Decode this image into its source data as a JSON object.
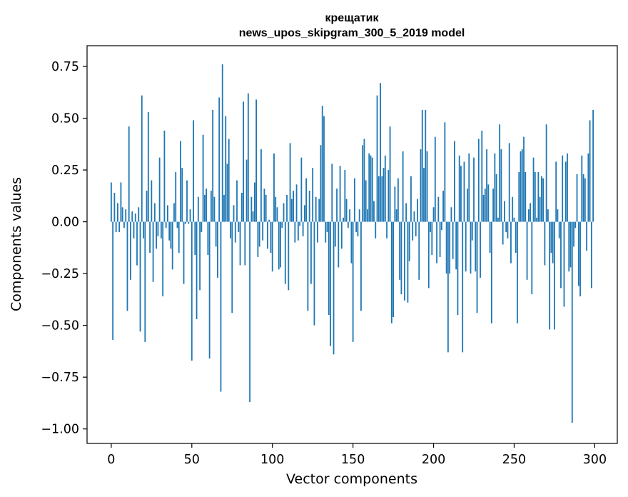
{
  "chart_data": {
    "type": "bar",
    "title": "крещатик",
    "subtitle": "news_upos_skipgram_300_5_2019 model",
    "xlabel": "Vector components",
    "ylabel": "Components values",
    "xlim": [
      -15,
      314
    ],
    "ylim": [
      -1.07,
      0.85
    ],
    "x_ticks": [
      0,
      50,
      100,
      150,
      200,
      250,
      300
    ],
    "x_tick_labels": [
      "0",
      "50",
      "100",
      "150",
      "200",
      "250",
      "300"
    ],
    "y_ticks": [
      0.75,
      0.5,
      0.25,
      0.0,
      -0.25,
      -0.5,
      -0.75,
      -1.0
    ],
    "y_tick_labels": [
      "0.75",
      "0.50",
      "0.25",
      "0.00",
      "−0.25",
      "−0.50",
      "−0.75",
      "−1.00"
    ],
    "bar_color": "#1f77b4",
    "grid": false,
    "x": "0..299",
    "values": [
      0.19,
      -0.57,
      0.14,
      -0.05,
      0.09,
      -0.05,
      0.19,
      0.07,
      -0.03,
      0.06,
      -0.43,
      0.46,
      -0.28,
      0.05,
      -0.08,
      0.04,
      -0.21,
      0.07,
      -0.53,
      0.61,
      -0.08,
      -0.58,
      0.15,
      0.53,
      -0.15,
      0.2,
      -0.29,
      0.09,
      -0.13,
      -0.07,
      0.31,
      -0.08,
      -0.36,
      0.44,
      -0.03,
      0.08,
      -0.09,
      -0.13,
      -0.23,
      0.09,
      0.24,
      -0.03,
      -0.15,
      0.39,
      0.26,
      -0.3,
      -0.01,
      0.2,
      -0.01,
      0.06,
      -0.67,
      0.49,
      -0.16,
      -0.47,
      0.12,
      -0.33,
      -0.05,
      0.42,
      0.13,
      0.16,
      -0.16,
      -0.66,
      0.15,
      0.54,
      0.12,
      -0.12,
      -0.27,
      0.6,
      -0.82,
      0.76,
      0.13,
      0.51,
      0.28,
      0.4,
      -0.08,
      -0.44,
      0.08,
      -0.1,
      0.2,
      -0.05,
      -0.21,
      0.14,
      0.58,
      -0.21,
      0.3,
      0.62,
      -0.87,
      0.12,
      0.05,
      0.19,
      0.59,
      -0.17,
      -0.12,
      0.35,
      -0.09,
      0.16,
      0.13,
      -0.13,
      0.01,
      -0.15,
      -0.24,
      0.33,
      0.12,
      0.07,
      -0.23,
      -0.22,
      -0.03,
      0.09,
      -0.3,
      0.13,
      -0.33,
      0.38,
      0.11,
      0.15,
      -0.1,
      0.18,
      -0.09,
      -0.02,
      0.31,
      -0.07,
      0.08,
      0.21,
      -0.43,
      0.15,
      -0.3,
      0.26,
      -0.5,
      0.12,
      -0.1,
      0.11,
      0.37,
      0.56,
      0.51,
      -0.1,
      -0.05,
      -0.45,
      -0.6,
      0.28,
      -0.64,
      -0.12,
      0.16,
      -0.22,
      0.27,
      -0.13,
      0.02,
      0.25,
      0.11,
      -0.03,
      0.06,
      -0.2,
      -0.58,
      0.21,
      -0.05,
      -0.07,
      0.06,
      -0.43,
      0.37,
      0.4,
      0.2,
      0.06,
      0.33,
      0.32,
      0.31,
      0.1,
      -0.08,
      0.61,
      0.22,
      0.67,
      0.22,
      0.26,
      0.32,
      -0.08,
      0.25,
      0.46,
      -0.49,
      -0.46,
      0.17,
      0.06,
      0.21,
      -0.28,
      -0.35,
      0.34,
      -0.38,
      0.09,
      -0.39,
      -0.19,
      0.22,
      -0.09,
      0.05,
      -0.07,
      0.11,
      -0.28,
      0.35,
      0.54,
      0.26,
      0.54,
      0.34,
      -0.32,
      -0.05,
      -0.16,
      0.07,
      0.41,
      -0.2,
      0.12,
      -0.17,
      -0.04,
      0.15,
      0.48,
      -0.25,
      -0.63,
      -0.25,
      0.07,
      -0.18,
      0.39,
      -0.23,
      -0.45,
      0.32,
      0.27,
      -0.63,
      0.29,
      -0.24,
      0.16,
      0.33,
      -0.25,
      -0.09,
      0.31,
      -0.24,
      -0.44,
      0.4,
      -0.27,
      0.44,
      0.13,
      0.16,
      0.35,
      0.18,
      -0.15,
      -0.49,
      0.16,
      0.33,
      0.23,
      0.02,
      0.47,
      0.35,
      -0.11,
      0.1,
      -0.05,
      -0.08,
      0.38,
      -0.2,
      0.12,
      0.02,
      -0.15,
      -0.49,
      0.24,
      0.34,
      0.35,
      0.41,
      0.24,
      -0.28,
      0.06,
      0.09,
      -0.35,
      0.31,
      0.24,
      0.02,
      0.24,
      0.12,
      0.22,
      0.21,
      -0.21,
      0.47,
      0.06,
      -0.52,
      -0.15,
      -0.2,
      -0.52,
      0.29,
      0.06,
      -0.08,
      -0.32,
      0.32,
      -0.41,
      0.29,
      0.33,
      -0.24,
      -0.22,
      -0.97,
      -0.12,
      -0.03,
      0.23,
      -0.31,
      -0.36,
      0.32,
      0.23,
      0.21,
      -0.14,
      0.33,
      0.49,
      -0.32,
      0.54
    ]
  }
}
